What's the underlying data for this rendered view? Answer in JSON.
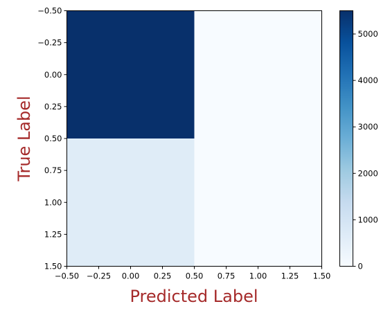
{
  "chart_data": {
    "type": "heatmap",
    "title": "",
    "xlabel": "Predicted Label",
    "ylabel": "True Label",
    "label_color": "#a52a2a",
    "colormap": "Blues",
    "xlim": [
      -0.5,
      1.5
    ],
    "ylim": [
      1.5,
      -0.5
    ],
    "x_ticks": [
      "−0.50",
      "−0.25",
      "0.00",
      "0.25",
      "0.50",
      "0.75",
      "1.00",
      "1.25",
      "1.50"
    ],
    "y_ticks": [
      "−0.50",
      "−0.25",
      "0.00",
      "0.25",
      "0.50",
      "0.75",
      "1.00",
      "1.25",
      "1.50"
    ],
    "matrix": [
      [
        5500,
        0
      ],
      [
        650,
        0
      ]
    ],
    "colorbar": {
      "min": 0,
      "max": 5500,
      "ticks": [
        "0",
        "1000",
        "2000",
        "3000",
        "4000",
        "5000"
      ]
    }
  }
}
